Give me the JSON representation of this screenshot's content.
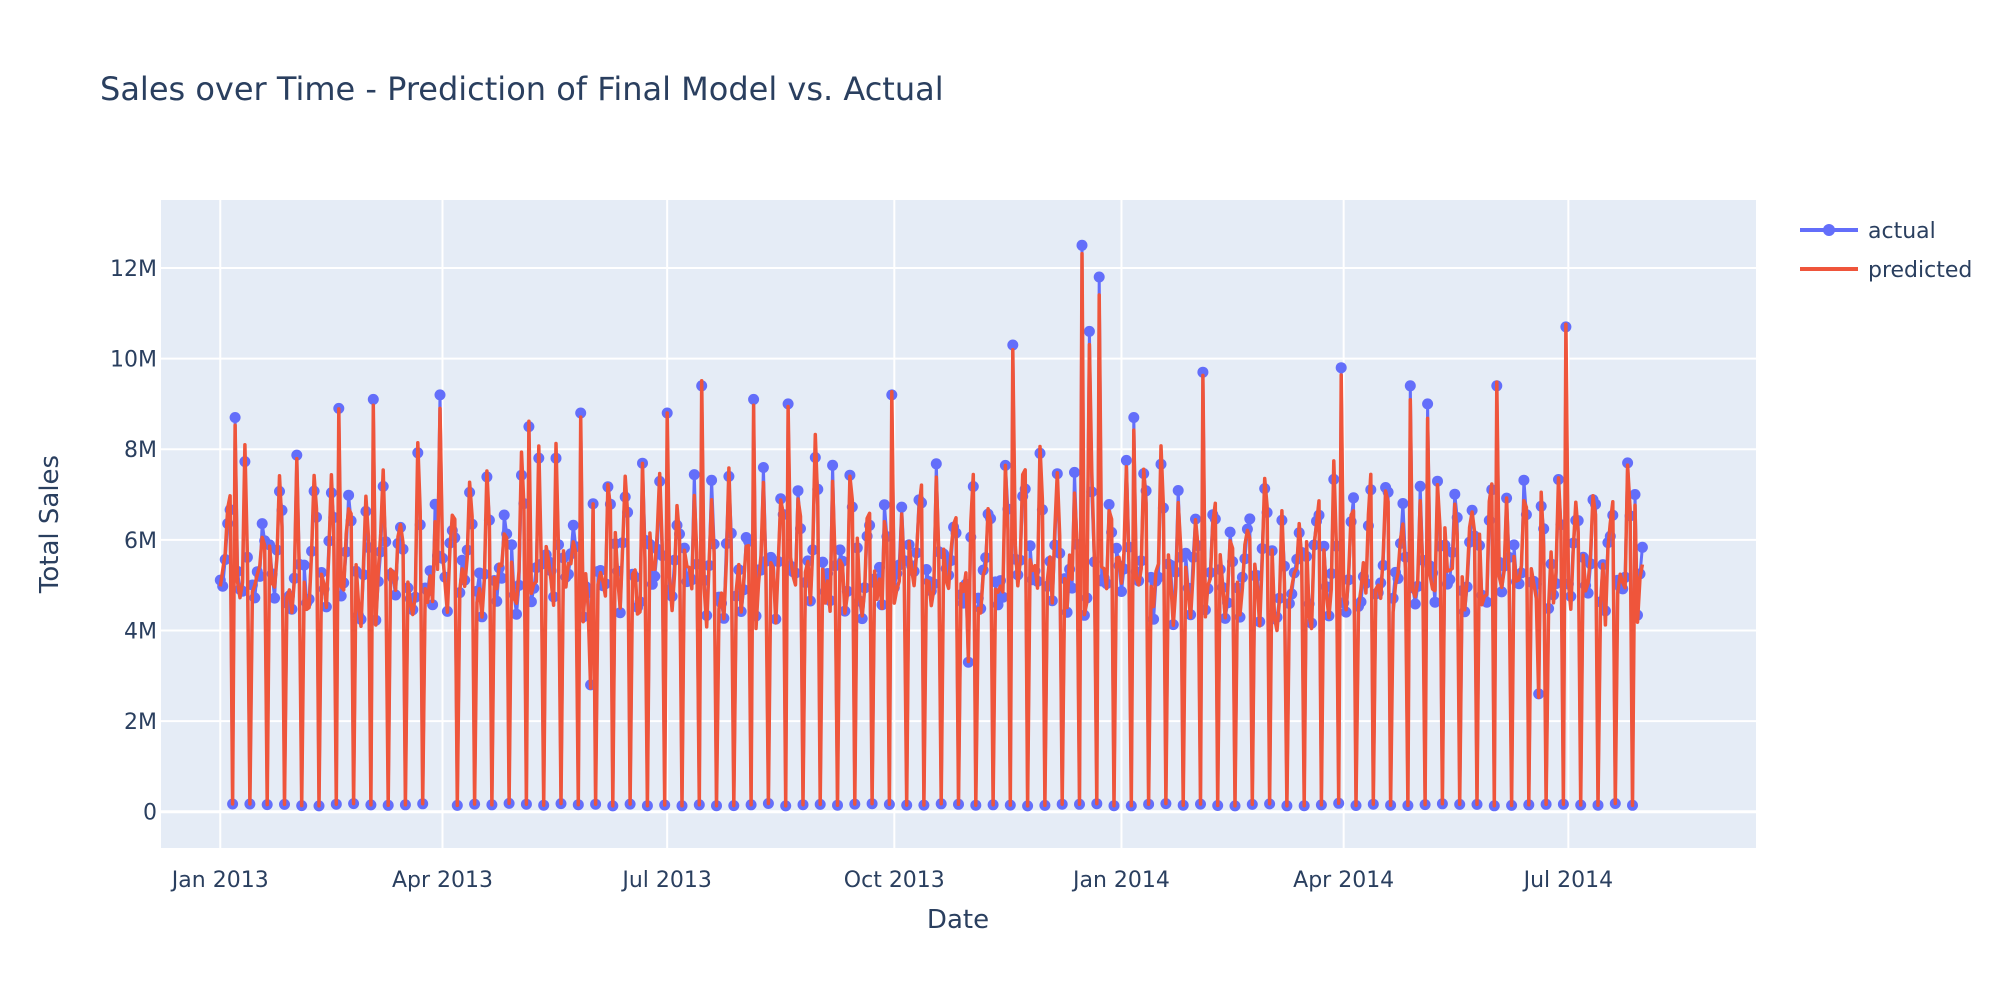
{
  "chart_data": {
    "type": "line",
    "title": "Sales over Time - Prediction of Final Model vs. Actual",
    "xlabel": "Date",
    "ylabel": "Total Sales",
    "x_ticks": [
      "Jan 2013",
      "Apr 2013",
      "Jul 2013",
      "Oct 2013",
      "Jan 2014",
      "Apr 2014",
      "Jul 2014"
    ],
    "y_ticks": [
      "0",
      "2M",
      "4M",
      "6M",
      "8M",
      "10M",
      "12M"
    ],
    "ylim": [
      -800000,
      13500000
    ],
    "xlim": [
      "2012-12-08",
      "2014-09-15"
    ],
    "x_range": [
      "2013-01-01",
      "2014-07-31"
    ],
    "grid": true,
    "legend_position": "top-right",
    "colors": {
      "actual": "#636efa",
      "predicted": "#ef553b",
      "plot_bg": "#e5ecf6",
      "grid": "#ffffff"
    },
    "series": [
      {
        "name": "actual",
        "mode": "lines+markers"
      },
      {
        "name": "predicted",
        "mode": "lines"
      }
    ],
    "weekly_pattern": [
      5200000,
      4900000,
      4800000,
      5300000,
      7000000,
      6300000,
      150000
    ],
    "peaks": [
      {
        "date": "2013-01-07",
        "value": 8700000
      },
      {
        "date": "2013-02-18",
        "value": 8900000
      },
      {
        "date": "2013-03-04",
        "value": 9100000
      },
      {
        "date": "2013-03-31",
        "value": 9200000
      },
      {
        "date": "2013-05-06",
        "value": 8500000
      },
      {
        "date": "2013-05-27",
        "value": 8800000
      },
      {
        "date": "2013-07-01",
        "value": 8800000
      },
      {
        "date": "2013-07-15",
        "value": 9400000
      },
      {
        "date": "2013-08-05",
        "value": 9100000
      },
      {
        "date": "2013-08-19",
        "value": 9000000
      },
      {
        "date": "2013-09-30",
        "value": 9200000
      },
      {
        "date": "2013-11-18",
        "value": 10300000
      },
      {
        "date": "2013-12-16",
        "value": 12500000
      },
      {
        "date": "2013-12-19",
        "value": 10600000
      },
      {
        "date": "2013-12-23",
        "value": 11800000
      },
      {
        "date": "2014-01-06",
        "value": 8700000
      },
      {
        "date": "2014-02-03",
        "value": 9700000
      },
      {
        "date": "2014-03-31",
        "value": 9800000
      },
      {
        "date": "2014-04-28",
        "value": 9400000
      },
      {
        "date": "2014-05-05",
        "value": 9000000
      },
      {
        "date": "2014-06-02",
        "value": 9400000
      },
      {
        "date": "2014-06-30",
        "value": 10700000
      },
      {
        "date": "2014-07-28",
        "value": 7000000
      }
    ],
    "dips": [
      {
        "date": "2013-05-31",
        "value": 2800000
      },
      {
        "date": "2013-10-31",
        "value": 3300000
      },
      {
        "date": "2014-06-19",
        "value": 2600000
      }
    ]
  }
}
